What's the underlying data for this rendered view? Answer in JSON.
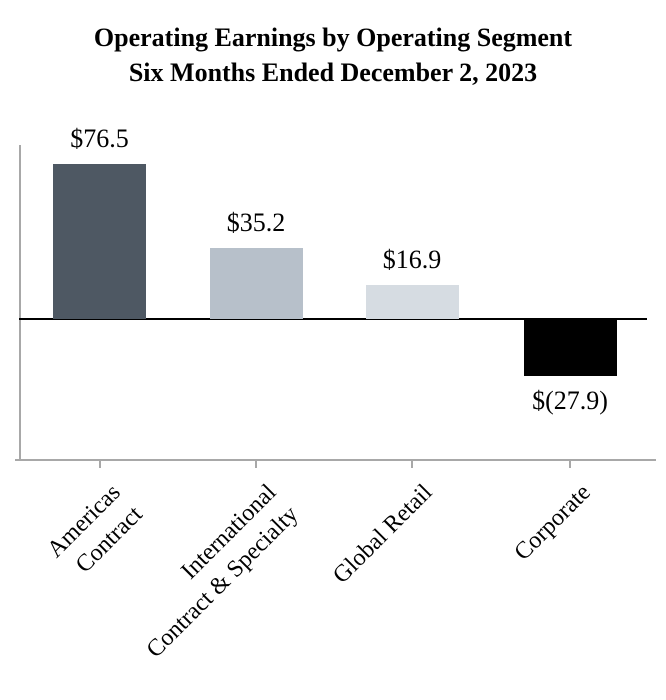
{
  "chart_data": {
    "type": "bar",
    "title": "Operating Earnings by Operating Segment",
    "subtitle": "Six Months Ended December 2, 2023",
    "categories": [
      "Americas\nContract",
      "International\nContract & Specialty",
      "Global Retail",
      "Corporate"
    ],
    "values": [
      76.5,
      35.2,
      16.9,
      -27.9
    ],
    "value_labels": [
      "$76.5",
      "$35.2",
      "$16.9",
      "$(27.9)"
    ],
    "bar_colors": [
      "#4e5863",
      "#b7c0ca",
      "#d6dce2",
      "#000000"
    ],
    "axis_color": "#a8a8a8",
    "zero_line_color": "#000000",
    "text_color": "#000000",
    "ylim": [
      -70,
      86
    ],
    "grid": false,
    "legend": "none"
  }
}
